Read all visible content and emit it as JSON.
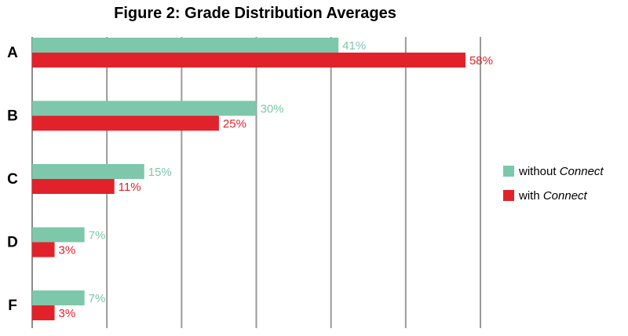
{
  "chart_data": {
    "type": "bar",
    "orientation": "horizontal",
    "title": "Figure 2: Grade Distribution Averages",
    "categories": [
      "A",
      "B",
      "C",
      "D",
      "F"
    ],
    "series": [
      {
        "name": "without Connect",
        "label_prefix": "without ",
        "label_em": "Connect",
        "color": "#7dc8aa",
        "values": [
          41,
          30,
          15,
          7,
          7
        ],
        "value_labels": [
          "41%",
          "30%",
          "15%",
          "7%",
          "7%"
        ]
      },
      {
        "name": "with Connect",
        "label_prefix": "with ",
        "label_em": "Connect",
        "color": "#e2222b",
        "values": [
          58,
          25,
          11,
          3,
          3
        ],
        "value_labels": [
          "58%",
          "25%",
          "11%",
          "3%",
          "3%"
        ]
      }
    ],
    "xlim": [
      0,
      60
    ],
    "grid": true,
    "legend_position": "right"
  }
}
